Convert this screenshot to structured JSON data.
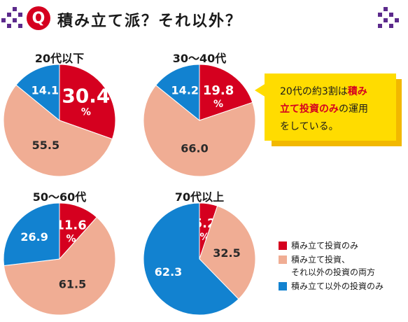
{
  "header": {
    "badge": "Q",
    "title": "積み立て派？それ以外？"
  },
  "colors": {
    "accent_red": "#d5001f",
    "salmon": "#f0ad94",
    "blue": "#1282d0",
    "purple_deco": "#5c2a8c",
    "callout_yellow": "#ffdc00"
  },
  "callout": {
    "line1_pre": "20代の約3割は",
    "line1_em": "積み",
    "line2_em": "立て投資のみ",
    "line2_post": "の運用",
    "line3": "をしている。"
  },
  "legend": [
    {
      "label": "積み立て投資のみ",
      "color": "#d5001f"
    },
    {
      "label": "積み立て投資、",
      "label2": "それ以外の投資の両方",
      "color": "#f0ad94"
    },
    {
      "label": "積み立て以外の投資のみ",
      "color": "#1282d0"
    }
  ],
  "chart_data": [
    {
      "type": "pie",
      "title": "20代以下",
      "categories": [
        "積み立て投資のみ",
        "積み立て投資、それ以外の投資の両方",
        "積み立て以外の投資のみ"
      ],
      "values": [
        30.4,
        55.5,
        14.1
      ],
      "value_labels": [
        "30.4",
        "55.5",
        "14.1"
      ],
      "unit": "%"
    },
    {
      "type": "pie",
      "title": "30～40代",
      "categories": [
        "積み立て投資のみ",
        "積み立て投資、それ以外の投資の両方",
        "積み立て以外の投資のみ"
      ],
      "values": [
        19.8,
        66.0,
        14.2
      ],
      "value_labels": [
        "19.8",
        "66.0",
        "14.2"
      ],
      "unit": "%"
    },
    {
      "type": "pie",
      "title": "50～60代",
      "categories": [
        "積み立て投資のみ",
        "積み立て投資、それ以外の投資の両方",
        "積み立て以外の投資のみ"
      ],
      "values": [
        11.6,
        61.5,
        26.9
      ],
      "value_labels": [
        "11.6",
        "61.5",
        "26.9"
      ],
      "unit": "%"
    },
    {
      "type": "pie",
      "title": "70代以上",
      "categories": [
        "積み立て投資のみ",
        "積み立て投資、それ以外の投資の両方",
        "積み立て以外の投資のみ"
      ],
      "values": [
        5.2,
        32.5,
        62.3
      ],
      "value_labels": [
        "5.2",
        "32.5",
        "62.3"
      ],
      "unit": "%"
    }
  ]
}
